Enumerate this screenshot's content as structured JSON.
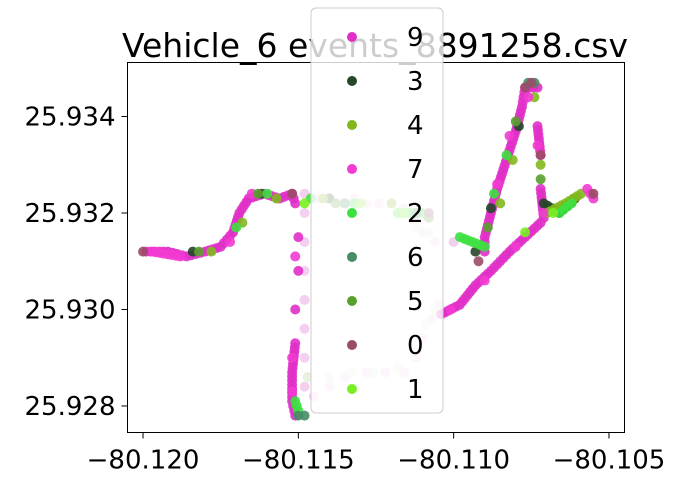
{
  "chart_data": {
    "type": "scatter",
    "title": "Vehicle_6 events_8891258.csv",
    "xlabel": "",
    "ylabel": "",
    "xlim": [
      -80.1205,
      -80.1045
    ],
    "ylim": [
      25.92745,
      25.93512
    ],
    "xticks": [
      {
        "value": -80.12,
        "label": "−80.120"
      },
      {
        "value": -80.115,
        "label": "−80.115"
      },
      {
        "value": -80.11,
        "label": "−80.110"
      },
      {
        "value": -80.105,
        "label": "−80.105"
      }
    ],
    "yticks": [
      {
        "value": 25.928,
        "label": "25.928"
      },
      {
        "value": 25.93,
        "label": "25.930"
      },
      {
        "value": 25.932,
        "label": "25.932"
      },
      {
        "value": 25.934,
        "label": "25.934"
      }
    ],
    "grid": false,
    "legend_position": "upper center (overlapping plot)",
    "legend": [
      {
        "label": "9",
        "color": "#e030c8"
      },
      {
        "label": "3",
        "color": "#25472a"
      },
      {
        "label": "4",
        "color": "#82b81e"
      },
      {
        "label": "7",
        "color": "#f23bd2"
      },
      {
        "label": "2",
        "color": "#3ee040"
      },
      {
        "label": "6",
        "color": "#468c66"
      },
      {
        "label": "5",
        "color": "#5aa02c"
      },
      {
        "label": "0",
        "color": "#9a4d67"
      },
      {
        "label": "1",
        "color": "#7aee22"
      }
    ],
    "series": [
      {
        "name": "9",
        "color": "#e030c8",
        "points": [
          [
            -80.1199,
            25.9312
          ],
          [
            -80.1192,
            25.9312
          ],
          [
            -80.1186,
            25.9311
          ],
          [
            -80.118,
            25.9312
          ],
          [
            -80.1175,
            25.9313
          ],
          [
            -80.1171,
            25.9316
          ],
          [
            -80.1169,
            25.932
          ],
          [
            -80.1166,
            25.9323
          ],
          [
            -80.1161,
            25.9324
          ],
          [
            -80.1156,
            25.9323
          ],
          [
            -80.1152,
            25.9324
          ],
          [
            -80.1151,
            25.9322
          ],
          [
            -80.115,
            25.9315
          ],
          [
            -80.115,
            25.9308
          ],
          [
            -80.1151,
            25.93
          ],
          [
            -80.1151,
            25.9293
          ],
          [
            -80.1152,
            25.9287
          ],
          [
            -80.1152,
            25.9281
          ],
          [
            -80.1151,
            25.9278
          ],
          [
            -80.1104,
            25.9299
          ],
          [
            -80.1098,
            25.9301
          ],
          [
            -80.1093,
            25.9305
          ],
          [
            -80.1088,
            25.9308
          ],
          [
            -80.1082,
            25.9312
          ],
          [
            -80.1077,
            25.9315
          ],
          [
            -80.1072,
            25.9318
          ],
          [
            -80.109,
            25.9312
          ],
          [
            -80.109,
            25.9315
          ],
          [
            -80.1088,
            25.932
          ],
          [
            -80.1086,
            25.9325
          ],
          [
            -80.1084,
            25.9329
          ],
          [
            -80.1082,
            25.9333
          ],
          [
            -80.108,
            25.9337
          ],
          [
            -80.1078,
            25.9342
          ],
          [
            -80.1077,
            25.9346
          ],
          [
            -80.1073,
            25.9346
          ],
          [
            -80.1073,
            25.9338
          ],
          [
            -80.1072,
            25.9332
          ],
          [
            -80.1072,
            25.9325
          ],
          [
            -80.1071,
            25.9319
          ]
        ]
      },
      {
        "name": "3",
        "color": "#25472a",
        "points": [
          [
            -80.1184,
            25.9312
          ],
          [
            -80.1162,
            25.9324
          ],
          [
            -80.114,
            25.9323
          ],
          [
            -80.1093,
            25.9312
          ],
          [
            -80.1088,
            25.9321
          ],
          [
            -80.1079,
            25.9338
          ],
          [
            -80.1071,
            25.9322
          ],
          [
            -80.1066,
            25.932
          ],
          [
            -80.1061,
            25.9323
          ]
        ]
      },
      {
        "name": "4",
        "color": "#82b81e",
        "points": [
          [
            -80.1178,
            25.9312
          ],
          [
            -80.1168,
            25.9318
          ],
          [
            -80.1157,
            25.9323
          ],
          [
            -80.1142,
            25.9323
          ],
          [
            -80.112,
            25.9322
          ],
          [
            -80.1085,
            25.9322
          ],
          [
            -80.1081,
            25.9331
          ],
          [
            -80.1074,
            25.9344
          ],
          [
            -80.1072,
            25.933
          ],
          [
            -80.107,
            25.932
          ],
          [
            -80.1064,
            25.9322
          ],
          [
            -80.1059,
            25.9324
          ]
        ]
      },
      {
        "name": "7",
        "color": "#f23bd2",
        "points": [
          [
            -80.1197,
            25.9312
          ],
          [
            -80.1188,
            25.9311
          ],
          [
            -80.1172,
            25.9314
          ],
          [
            -80.1165,
            25.9324
          ],
          [
            -80.1151,
            25.9311
          ],
          [
            -80.1152,
            25.929
          ],
          [
            -80.1152,
            25.9283
          ],
          [
            -80.1101,
            25.93
          ],
          [
            -80.109,
            25.9306
          ],
          [
            -80.108,
            25.9313
          ],
          [
            -80.1086,
            25.9326
          ],
          [
            -80.1082,
            25.9336
          ],
          [
            -80.1076,
            25.9344
          ],
          [
            -80.1073,
            25.9334
          ],
          [
            -80.1071,
            25.932
          ],
          [
            -80.1057,
            25.9325
          ],
          [
            -80.1055,
            25.9323
          ]
        ]
      },
      {
        "name": "2",
        "color": "#3ee040",
        "points": [
          [
            -80.117,
            25.9317
          ],
          [
            -80.116,
            25.9324
          ],
          [
            -80.1146,
            25.9323
          ],
          [
            -80.1132,
            25.9322
          ],
          [
            -80.1118,
            25.932
          ],
          [
            -80.111,
            25.932
          ],
          [
            -80.1098,
            25.9315
          ],
          [
            -80.109,
            25.9313
          ],
          [
            -80.1151,
            25.9281
          ],
          [
            -80.115,
            25.9279
          ],
          [
            -80.1087,
            25.9324
          ],
          [
            -80.1083,
            25.9332
          ],
          [
            -80.1066,
            25.932
          ],
          [
            -80.1062,
            25.9322
          ]
        ]
      },
      {
        "name": "6",
        "color": "#468c66",
        "points": [
          [
            -80.115,
            25.9278
          ],
          [
            -80.1148,
            25.9278
          ],
          [
            -80.1135,
            25.9322
          ],
          [
            -80.1112,
            25.932
          ],
          [
            -80.1076,
            25.9347
          ],
          [
            -80.1074,
            25.9347
          ]
        ]
      },
      {
        "name": "5",
        "color": "#5aa02c",
        "points": [
          [
            -80.1182,
            25.9312
          ],
          [
            -80.1163,
            25.9324
          ],
          [
            -80.1138,
            25.9322
          ],
          [
            -80.1108,
            25.9319
          ],
          [
            -80.1089,
            25.9317
          ],
          [
            -80.108,
            25.9339
          ],
          [
            -80.1072,
            25.9327
          ]
        ]
      },
      {
        "name": "0",
        "color": "#9a4d67",
        "points": [
          [
            -80.12,
            25.9312
          ],
          [
            -80.1152,
            25.9324
          ],
          [
            -80.1108,
            25.932
          ],
          [
            -80.1092,
            25.931
          ],
          [
            -80.1077,
            25.9346
          ],
          [
            -80.1075,
            25.9347
          ],
          [
            -80.1072,
            25.9332
          ],
          [
            -80.1055,
            25.9324
          ]
        ]
      },
      {
        "name": "1",
        "color": "#7aee22",
        "points": [
          [
            -80.1148,
            25.9322
          ],
          [
            -80.113,
            25.9322
          ],
          [
            -80.1116,
            25.932
          ],
          [
            -80.1077,
            25.9316
          ],
          [
            -80.1068,
            25.932
          ]
        ]
      }
    ],
    "faded_segments": [
      {
        "color": "#f1c8ec",
        "points": [
          [
            -80.1148,
            25.9324
          ],
          [
            -80.1144,
            25.9323
          ],
          [
            -80.114,
            25.9323
          ],
          [
            -80.1136,
            25.9322
          ],
          [
            -80.1132,
            25.9323
          ],
          [
            -80.1128,
            25.9322
          ],
          [
            -80.1124,
            25.9322
          ],
          [
            -80.112,
            25.9322
          ],
          [
            -80.1116,
            25.9321
          ],
          [
            -80.1112,
            25.932
          ],
          [
            -80.1148,
            25.932
          ],
          [
            -80.1148,
            25.9314
          ],
          [
            -80.1148,
            25.9308
          ],
          [
            -80.1148,
            25.9302
          ],
          [
            -80.1148,
            25.9296
          ],
          [
            -80.1148,
            25.929
          ],
          [
            -80.1148,
            25.9284
          ],
          [
            -80.1145,
            25.9282
          ],
          [
            -80.114,
            25.9284
          ],
          [
            -80.1135,
            25.9286
          ],
          [
            -80.1128,
            25.9287
          ],
          [
            -80.1122,
            25.9287
          ],
          [
            -80.1116,
            25.9287
          ],
          [
            -80.1112,
            25.929
          ],
          [
            -80.111,
            25.9294
          ],
          [
            -80.1107,
            25.9298
          ],
          [
            -80.1105,
            25.9301
          ],
          [
            -80.111,
            25.9316
          ],
          [
            -80.1112,
            25.9318
          ],
          [
            -80.1106,
            25.9314
          ],
          [
            -80.11,
            25.9314
          ]
        ]
      },
      {
        "color": "#e3efd8",
        "points": [
          [
            -80.1147,
            25.9286
          ],
          [
            -80.114,
            25.9286
          ],
          [
            -80.1133,
            25.9287
          ],
          [
            -80.1126,
            25.9287
          ],
          [
            -80.1118,
            25.9288
          ],
          [
            -80.1113,
            25.9292
          ],
          [
            -80.1109,
            25.9297
          ],
          [
            -80.1106,
            25.93
          ],
          [
            -80.1112,
            25.9317
          ],
          [
            -80.1108,
            25.9316
          ]
        ]
      }
    ]
  }
}
